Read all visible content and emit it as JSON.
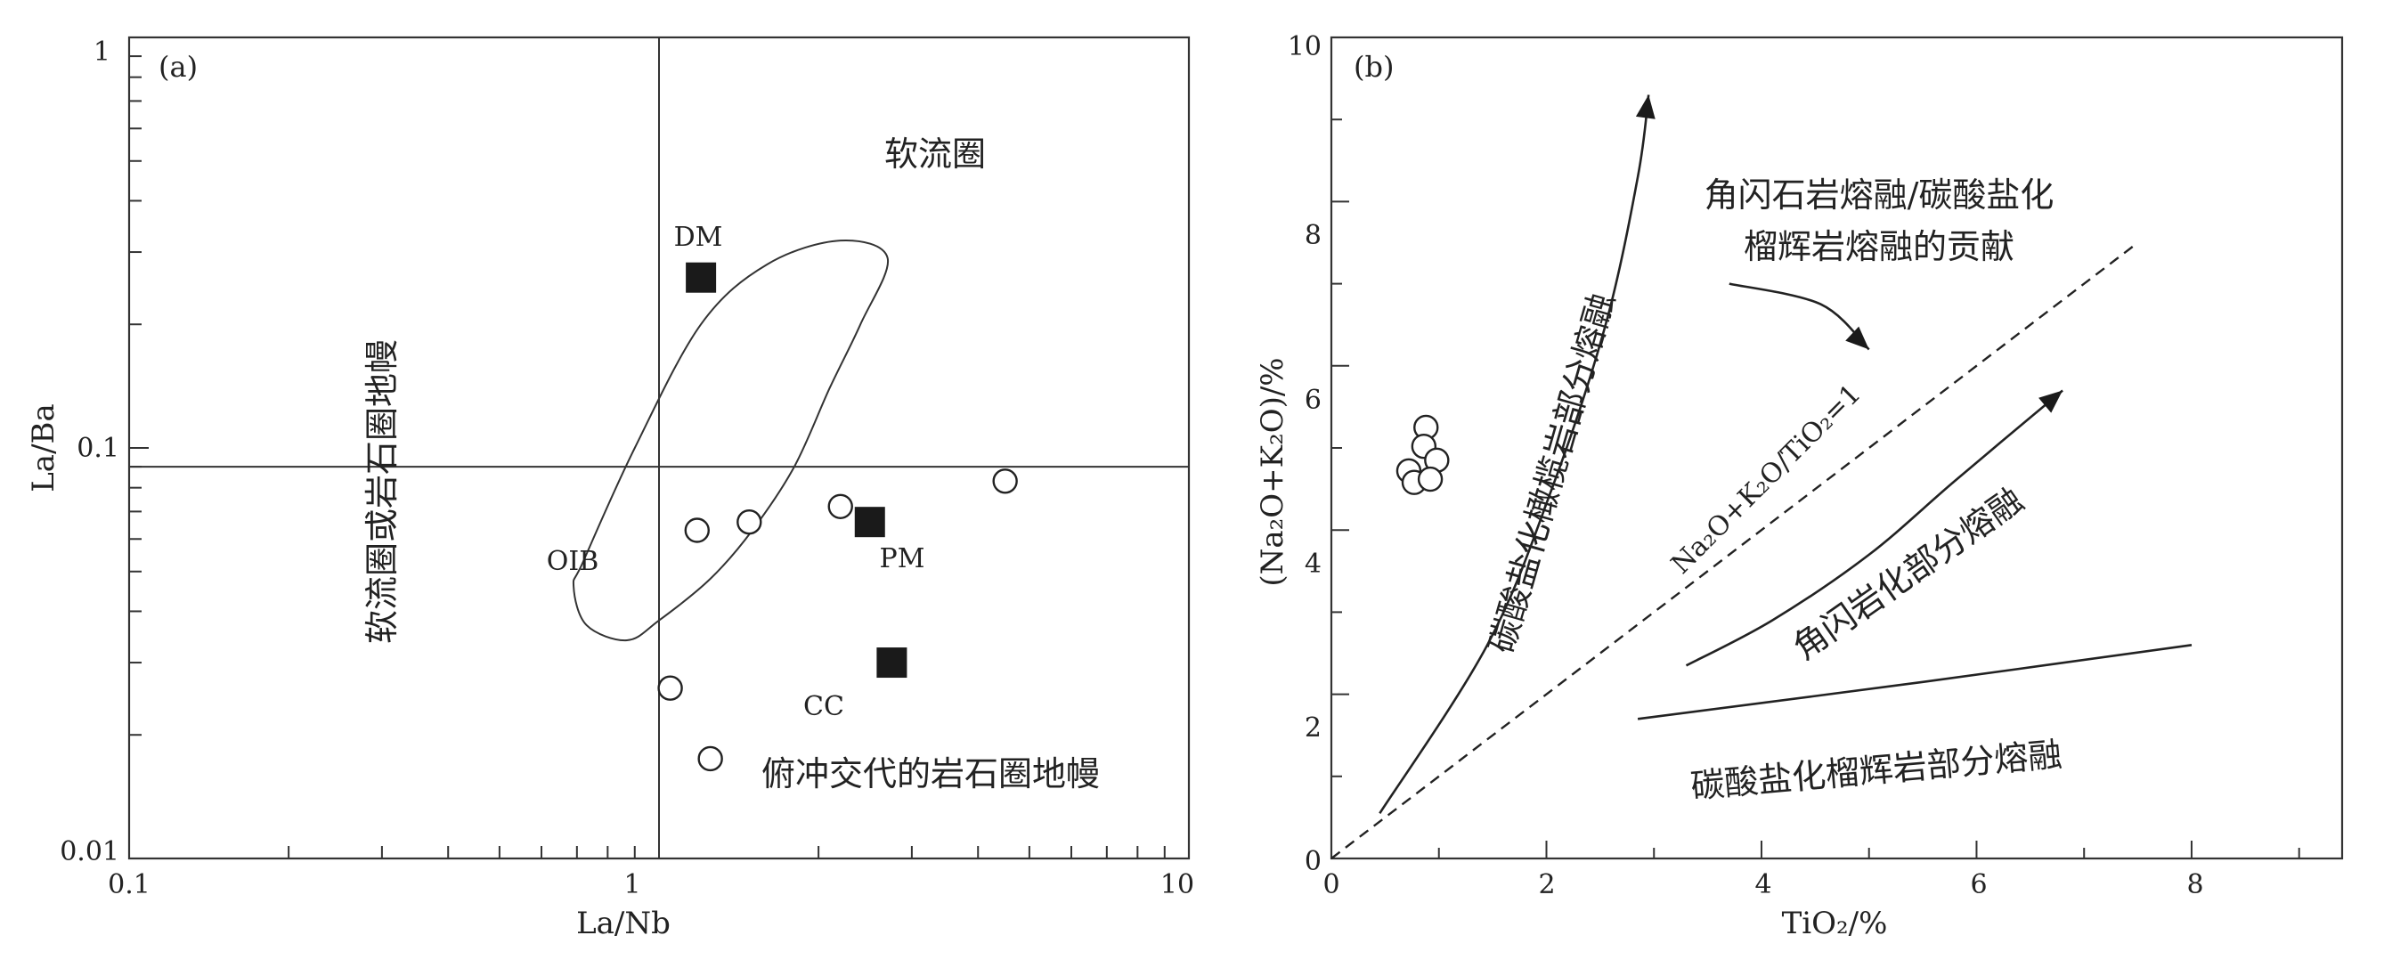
{
  "chart_data": [
    {
      "panel_label": "(a)",
      "type": "scatter",
      "xlabel": "La/Nb",
      "ylabel": "La/Ba",
      "xscale": "log",
      "yscale": "log",
      "xlim": [
        0.1,
        10
      ],
      "ylim": [
        0.01,
        1
      ],
      "x_tick_labels": [
        "0.1",
        "1",
        "10"
      ],
      "y_tick_labels": [
        "0.01",
        "0.1",
        "1"
      ],
      "grid": false,
      "divider_x": 1.0,
      "divider_y": 0.09,
      "region_labels": [
        "软流圈",
        "软流圈或岩石圈地幔",
        "俯冲交代的岩石圈地幔"
      ],
      "field_label": "OIB",
      "oib_field_outline": [
        {
          "x": 0.72,
          "y": 0.053
        },
        {
          "x": 0.9,
          "y": 0.1
        },
        {
          "x": 1.2,
          "y": 0.2
        },
        {
          "x": 1.6,
          "y": 0.28
        },
        {
          "x": 2.2,
          "y": 0.32
        },
        {
          "x": 2.7,
          "y": 0.29
        },
        {
          "x": 2.4,
          "y": 0.2
        },
        {
          "x": 2.1,
          "y": 0.14
        },
        {
          "x": 1.8,
          "y": 0.09
        },
        {
          "x": 1.5,
          "y": 0.063
        },
        {
          "x": 1.25,
          "y": 0.048
        },
        {
          "x": 1.0,
          "y": 0.038
        },
        {
          "x": 0.87,
          "y": 0.034
        },
        {
          "x": 0.73,
          "y": 0.037
        },
        {
          "x": 0.69,
          "y": 0.046
        }
      ],
      "samples": [
        {
          "x": 1.18,
          "y": 0.063
        },
        {
          "x": 1.48,
          "y": 0.066
        },
        {
          "x": 2.2,
          "y": 0.072
        },
        {
          "x": 4.5,
          "y": 0.083
        },
        {
          "x": 1.05,
          "y": 0.026
        },
        {
          "x": 1.25,
          "y": 0.0175
        }
      ],
      "references": [
        {
          "name": "DM",
          "x": 1.2,
          "y": 0.26
        },
        {
          "name": "PM",
          "x": 2.5,
          "y": 0.066
        },
        {
          "name": "CC",
          "x": 2.75,
          "y": 0.03
        }
      ]
    },
    {
      "panel_label": "(b)",
      "type": "scatter",
      "xlabel": "TiO₂/%",
      "ylabel": "(Na₂O+K₂O)/%",
      "xlim": [
        0,
        9.4
      ],
      "ylim": [
        0,
        10
      ],
      "x_ticks": [
        0,
        2,
        4,
        6,
        8
      ],
      "y_ticks": [
        0,
        2,
        4,
        6,
        8,
        10
      ],
      "grid": false,
      "dashed_line_label": "Na₂O+K₂O/TiO₂=1",
      "dashed_line": [
        {
          "x": 0,
          "y": 0
        },
        {
          "x": 7.5,
          "y": 7.5
        }
      ],
      "trend_labels": [
        "碳酸盐化橄榄岩部分熔融",
        "角闪岩化部分熔融",
        "碳酸盐化榴辉岩部分熔融",
        "角闪石岩熔融/碳酸盐化",
        "榴辉岩熔融的贡献"
      ],
      "trend_carbonated_peridotite": [
        {
          "x": 0.45,
          "y": 0.55
        },
        {
          "x": 1.45,
          "y": 2.6
        },
        {
          "x": 2.05,
          "y": 4.5
        },
        {
          "x": 2.55,
          "y": 6.5
        },
        {
          "x": 2.85,
          "y": 8.3
        },
        {
          "x": 2.95,
          "y": 9.3
        }
      ],
      "trend_amphibolite": [
        {
          "x": 3.3,
          "y": 2.35
        },
        {
          "x": 4.1,
          "y": 2.9
        },
        {
          "x": 5.0,
          "y": 3.7
        },
        {
          "x": 5.8,
          "y": 4.6
        },
        {
          "x": 6.8,
          "y": 5.7
        }
      ],
      "trend_carbonated_eclogite": [
        {
          "x": 2.85,
          "y": 1.7
        },
        {
          "x": 5.5,
          "y": 2.15
        },
        {
          "x": 8.0,
          "y": 2.6
        }
      ],
      "contribution_arrow": [
        {
          "x": 3.7,
          "y": 7.0
        },
        {
          "x": 4.55,
          "y": 6.75
        },
        {
          "x": 5.0,
          "y": 6.2
        }
      ],
      "samples": [
        {
          "x": 0.88,
          "y": 5.25
        },
        {
          "x": 0.86,
          "y": 5.02
        },
        {
          "x": 0.72,
          "y": 4.72
        },
        {
          "x": 0.98,
          "y": 4.85
        },
        {
          "x": 0.77,
          "y": 4.58
        },
        {
          "x": 0.92,
          "y": 4.62
        }
      ]
    }
  ]
}
